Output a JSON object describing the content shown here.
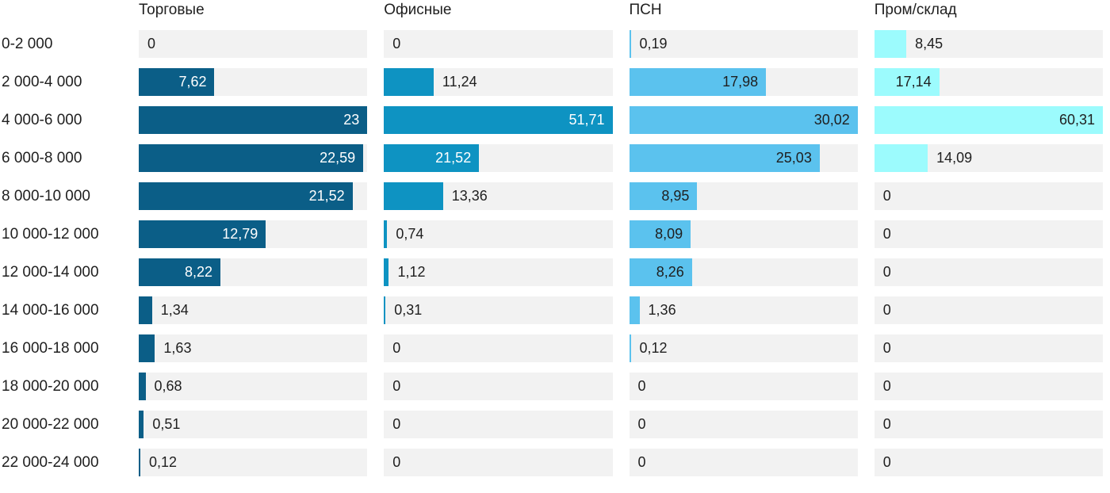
{
  "chart_data": {
    "type": "bar",
    "orientation": "horizontal",
    "title": "",
    "categories": [
      "0-2 000",
      "2 000-4 000",
      "4 000-6 000",
      "6 000-8 000",
      "8 000-10 000",
      "10 000-12 000",
      "12 000-14 000",
      "14 000-16 000",
      "16 000-18 000",
      "18 000-20 000",
      "20 000-22 000",
      "22 000-24 000"
    ],
    "series": [
      {
        "name": "Торговые",
        "color": "#0b5e87",
        "inside_label_color": "#ffffff",
        "values": [
          0,
          7.62,
          23,
          22.59,
          21.52,
          12.79,
          8.22,
          1.34,
          1.63,
          0.68,
          0.51,
          0.12
        ],
        "display": [
          "0",
          "7,62",
          "23",
          "22,59",
          "21,52",
          "12,79",
          "8,22",
          "1,34",
          "1,63",
          "0,68",
          "0,51",
          "0,12"
        ]
      },
      {
        "name": "Офисные",
        "color": "#0e93c2",
        "inside_label_color": "#ffffff",
        "values": [
          0,
          11.24,
          51.71,
          21.52,
          13.36,
          0.74,
          1.12,
          0.31,
          0,
          0,
          0,
          0
        ],
        "display": [
          "0",
          "11,24",
          "51,71",
          "21,52",
          "13,36",
          "0,74",
          "1,12",
          "0,31",
          "0",
          "0",
          "0",
          "0"
        ]
      },
      {
        "name": "ПСН",
        "color": "#5bc2ee",
        "inside_label_color": "#1f1f1f",
        "values": [
          0.19,
          17.98,
          30.02,
          25.03,
          8.95,
          8.09,
          8.26,
          1.36,
          0.12,
          0,
          0,
          0
        ],
        "display": [
          "0,19",
          "17,98",
          "30,02",
          "25,03",
          "8,95",
          "8,09",
          "8,26",
          "1,36",
          "0,12",
          "0",
          "0",
          "0"
        ]
      },
      {
        "name": "Пром/склад",
        "color": "#9cfbfd",
        "inside_label_color": "#1f1f1f",
        "values": [
          8.45,
          17.14,
          60.31,
          14.09,
          0,
          0,
          0,
          0,
          0,
          0,
          0,
          0
        ],
        "display": [
          "8,45",
          "17,14",
          "60,31",
          "14,09",
          "0",
          "0",
          "0",
          "0",
          "0",
          "0",
          "0",
          "0"
        ]
      }
    ],
    "layout": {
      "scaling": "each series scaled to its own max = full track width",
      "track_color": "#f2f2f2",
      "text_color": "#1f1f1f",
      "decimal_separator": ",",
      "label_inside_min_ratio": 0.265,
      "grid": "off",
      "legend": "column headers above each bar group"
    }
  }
}
